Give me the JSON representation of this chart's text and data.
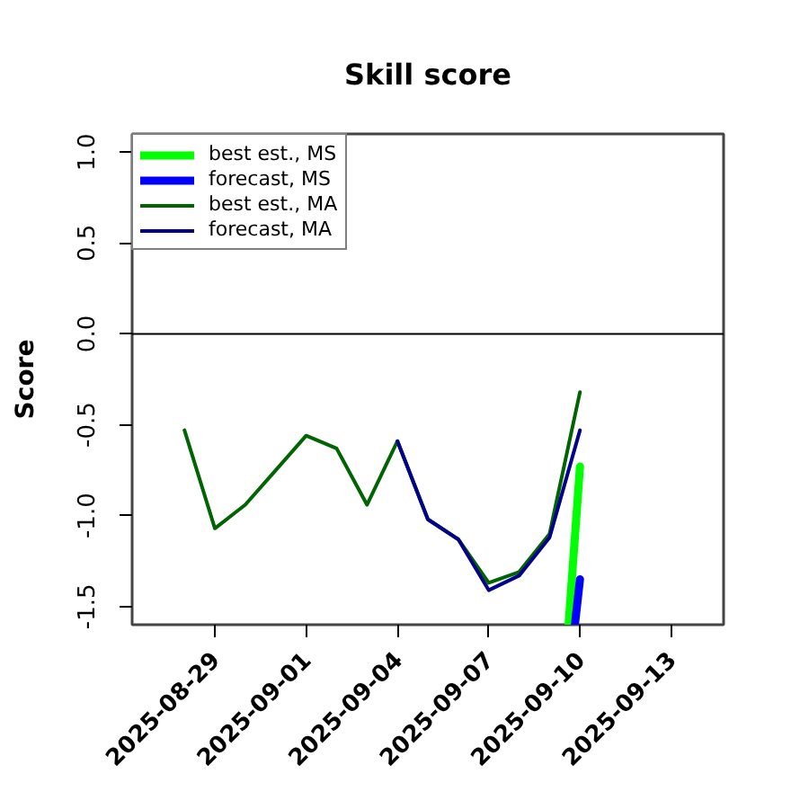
{
  "chart_data": {
    "type": "line",
    "title": "Skill score",
    "ylabel": "Score",
    "x": [
      "2025-08-28",
      "2025-08-29",
      "2025-08-30",
      "2025-08-31",
      "2025-09-01",
      "2025-09-02",
      "2025-09-03",
      "2025-09-04",
      "2025-09-05",
      "2025-09-06",
      "2025-09-07",
      "2025-09-08",
      "2025-09-09",
      "2025-09-10"
    ],
    "series": [
      {
        "name": "best est., MS",
        "color": "#00ff00",
        "x": [
          "2025-09-09T15:00",
          "2025-09-10"
        ],
        "values": [
          -1.6,
          -0.73
        ]
      },
      {
        "name": "forecast, MS",
        "color": "#0000ff",
        "x": [
          "2025-09-09T20:00",
          "2025-09-10"
        ],
        "values": [
          -1.6,
          -1.35
        ]
      },
      {
        "name": "best est., MA",
        "color": "#006400",
        "values": [
          -0.53,
          -1.07,
          -0.94,
          -0.75,
          -0.56,
          -0.63,
          -0.94,
          -0.59,
          -1.02,
          -1.13,
          -1.37,
          -1.31,
          -1.1,
          -0.32
        ]
      },
      {
        "name": "forecast, MA",
        "color": "#00008b",
        "values": [
          null,
          null,
          null,
          null,
          null,
          null,
          null,
          -0.59,
          -1.02,
          -1.13,
          -1.41,
          -1.33,
          -1.12,
          -0.53
        ]
      }
    ],
    "xlim": [
      "2025-08-26T06:43",
      "2025-09-14T17:17"
    ],
    "ylim": [
      -1.6,
      1.1
    ],
    "xticks": [
      "2025-08-29",
      "2025-09-01",
      "2025-09-04",
      "2025-09-07",
      "2025-09-10",
      "2025-09-13"
    ],
    "yticks": [
      {
        "value": -1.5,
        "label": "-1.5"
      },
      {
        "value": -1,
        "label": "-1.0"
      },
      {
        "value": -0.5,
        "label": "-0.5"
      },
      {
        "value": 0,
        "label": "0.0"
      },
      {
        "value": 0.5,
        "label": "0.5"
      },
      {
        "value": 1,
        "label": "1.0"
      }
    ],
    "ref_lines": [
      {
        "axis": "y",
        "value": 0,
        "color": "#000000"
      }
    ],
    "legend": "top left"
  }
}
